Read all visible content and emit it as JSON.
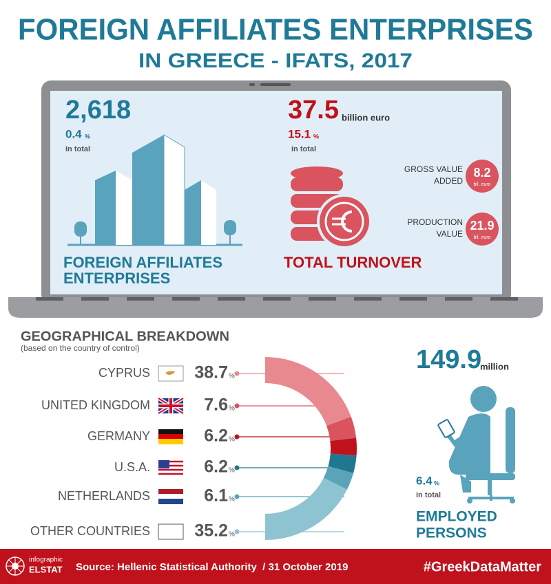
{
  "header": {
    "title": "FOREIGN AFFILIATES ENTERPRISES",
    "subtitle": "IN GREECE - IFATS, 2017"
  },
  "enterprises": {
    "value": "2,618",
    "share": "0.4",
    "share_unit": "%",
    "share_note": "in total",
    "label_lines": [
      "FOREIGN AFFILIATES",
      "ENTERPRISES"
    ]
  },
  "turnover": {
    "value": "37.5",
    "unit": "billion euro",
    "share": "15.1",
    "share_unit": "%",
    "share_note": "in total",
    "label": "TOTAL TURNOVER",
    "breakdown": [
      {
        "label_lines": [
          "GROSS VALUE",
          "ADDED"
        ],
        "value": "8.2",
        "unit": "bil. euro"
      },
      {
        "label_lines": [
          "PRODUCTION",
          "VALUE"
        ],
        "value": "21.9",
        "unit": "bil. euro"
      }
    ]
  },
  "geo": {
    "title": "GEOGRAPHICAL BREAKDOWN",
    "subtitle": "(based on the country of control)",
    "unit": "%",
    "countries": [
      {
        "name": "CYPRUS",
        "value": 38.7,
        "color": "#e8898f"
      },
      {
        "name": "UNITED KINGDOM",
        "value": 7.6,
        "color": "#d9545e"
      },
      {
        "name": "GERMANY",
        "value": 6.2,
        "color": "#c0121c"
      },
      {
        "name": "U.S.A.",
        "value": 6.2,
        "color": "#1f7890"
      },
      {
        "name": "NETHERLANDS",
        "value": 6.1,
        "color": "#5aa3b8"
      },
      {
        "name": "OTHER COUNTRIES",
        "value": 35.2,
        "color": "#8ec3d2"
      }
    ]
  },
  "employment": {
    "value": "149.9",
    "unit": "million",
    "share": "6.4",
    "share_unit": "%",
    "share_note": "in total",
    "label_lines": [
      "EMPLOYED",
      "PERSONS"
    ]
  },
  "footer": {
    "brand_lines": [
      "infographic",
      "ELSTAT"
    ],
    "source": "Source: Hellenic Statistical Authority  / 31 October 2019",
    "hashtag": "#GreekDataMatter"
  }
}
